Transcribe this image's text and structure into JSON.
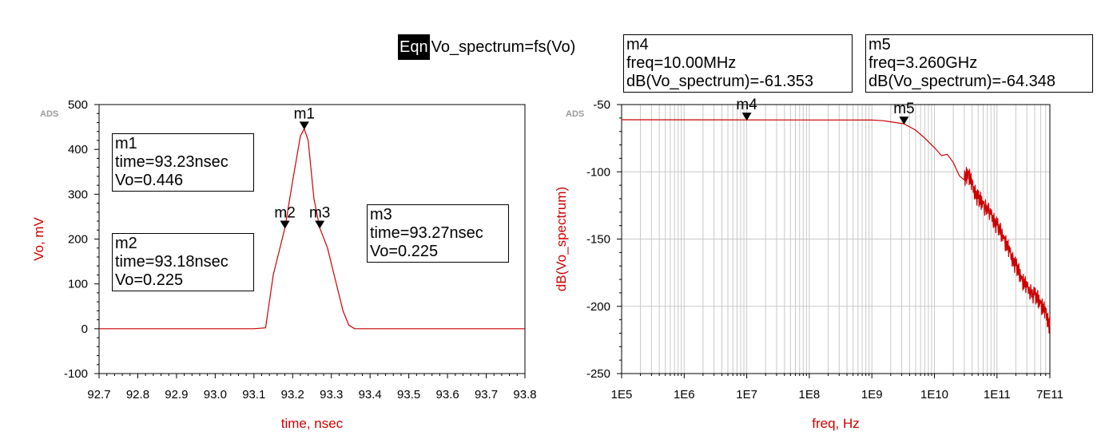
{
  "equation": {
    "badge": "Eqn",
    "text": "Vo_spectrum=fs(Vo)"
  },
  "chart_data": [
    {
      "type": "line",
      "tag": "ADS",
      "xlabel": "time, nsec",
      "ylabel": "Vo, mV",
      "xlim": [
        92.7,
        93.8
      ],
      "ylim": [
        -100,
        500
      ],
      "xticks": [
        "92.7",
        "92.8",
        "92.9",
        "93.0",
        "93.1",
        "93.2",
        "93.3",
        "93.4",
        "93.5",
        "93.6",
        "93.7",
        "93.8"
      ],
      "yticks": [
        "-100",
        "0",
        "100",
        "200",
        "300",
        "400",
        "500"
      ],
      "grid": false,
      "series": [
        {
          "color": "#cc0000",
          "x": [
            92.7,
            93.1,
            93.13,
            93.15,
            93.18,
            93.2,
            93.22,
            93.23,
            93.24,
            93.255,
            93.27,
            93.29,
            93.31,
            93.33,
            93.345,
            93.36,
            93.4,
            93.8
          ],
          "y": [
            0,
            0,
            2,
            120,
            225,
            330,
            430,
            446,
            420,
            290,
            225,
            180,
            110,
            40,
            8,
            0,
            0,
            0
          ]
        }
      ],
      "markers": [
        {
          "label": "m1",
          "x": 93.23,
          "y": 446
        },
        {
          "label": "m2",
          "x": 93.18,
          "y": 225
        },
        {
          "label": "m3",
          "x": 93.27,
          "y": 225
        }
      ],
      "marker_boxes": [
        {
          "name": "m1",
          "lines": [
            "m1",
            "time=93.23nsec",
            "Vo=0.446"
          ]
        },
        {
          "name": "m2",
          "lines": [
            "m2",
            "time=93.18nsec",
            "Vo=0.225"
          ]
        },
        {
          "name": "m3",
          "lines": [
            "m3",
            "time=93.27nsec",
            "Vo=0.225"
          ]
        }
      ]
    },
    {
      "type": "line",
      "tag": "ADS",
      "xlabel": "freq, Hz",
      "ylabel": "dB(Vo_spectrum)",
      "xscale": "log",
      "xlim": [
        100000,
        700000000000
      ],
      "ylim": [
        -250,
        -50
      ],
      "xticks": [
        {
          "value": 100000,
          "label": "1E5"
        },
        {
          "value": 1000000,
          "label": "1E6"
        },
        {
          "value": 10000000,
          "label": "1E7"
        },
        {
          "value": 100000000,
          "label": "1E8"
        },
        {
          "value": 1000000000,
          "label": "1E9"
        },
        {
          "value": 10000000000,
          "label": "1E10"
        },
        {
          "value": 100000000000,
          "label": "1E11"
        },
        {
          "value": 700000000000,
          "label": "7E11"
        }
      ],
      "yticks": [
        "-50",
        "-100",
        "-150",
        "-200",
        "-250"
      ],
      "grid": true,
      "series": [
        {
          "color": "#cc0000",
          "x": [
            100000,
            1000000000,
            1500000000,
            2000000000,
            3260000000,
            5000000000,
            7000000000,
            10000000000,
            13000000000,
            16000000000,
            20000000000,
            25000000000,
            30000000000,
            35000000000,
            40000000000,
            50000000000,
            60000000000,
            80000000000,
            100000000000,
            130000000000,
            160000000000,
            200000000000,
            250000000000,
            300000000000,
            400000000000,
            500000000000,
            600000000000,
            700000000000
          ],
          "y": [
            -61.3,
            -61.5,
            -62,
            -62.8,
            -64.3,
            -69,
            -75,
            -82,
            -88,
            -87,
            -93,
            -103,
            -106,
            -101,
            -110,
            -120,
            -124,
            -132,
            -140,
            -150,
            -160,
            -170,
            -180,
            -186,
            -192,
            -198,
            -205,
            -215
          ]
        }
      ],
      "markers": [
        {
          "label": "m4",
          "x": 10000000,
          "y": -61.353
        },
        {
          "label": "m5",
          "x": 3260000000,
          "y": -64.348
        }
      ],
      "marker_boxes": [
        {
          "name": "m4",
          "lines": [
            "m4",
            "freq=10.00MHz",
            "dB(Vo_spectrum)=-61.353"
          ]
        },
        {
          "name": "m5",
          "lines": [
            "m5",
            "freq=3.260GHz",
            "dB(Vo_spectrum)=-64.348"
          ]
        }
      ]
    }
  ]
}
